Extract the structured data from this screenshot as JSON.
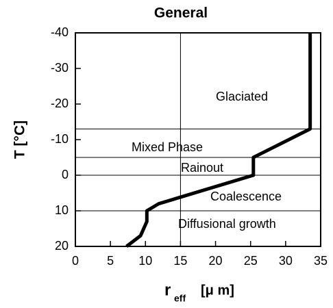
{
  "chart_data": {
    "type": "line",
    "title": "General",
    "y_label": "T [°C]",
    "x_label": {
      "main": "r",
      "sub": "eff",
      "unit": "[μ m]"
    },
    "xlim": [
      0,
      35
    ],
    "xticks": [
      0,
      5,
      10,
      15,
      20,
      25,
      30,
      35
    ],
    "ylim": [
      -40,
      20
    ],
    "yticks": [
      -40,
      -30,
      -20,
      -10,
      0,
      10,
      20
    ],
    "y_inverted": true,
    "zone_lines": [
      -13,
      -5,
      0,
      10
    ],
    "x_ref_line": 15,
    "annotations": [
      "Glaciated",
      "Mixed Phase",
      "Rainout",
      "Coalescence",
      "Diffusional growth"
    ],
    "series": [
      {
        "color": "#000000",
        "x": [
          33.5,
          33.5,
          25.4,
          25.4,
          11.9,
          10.2,
          10.2,
          9.3,
          7.3
        ],
        "values": [
          -40,
          -13,
          -5,
          0,
          8,
          10,
          13,
          17,
          20
        ]
      }
    ]
  }
}
